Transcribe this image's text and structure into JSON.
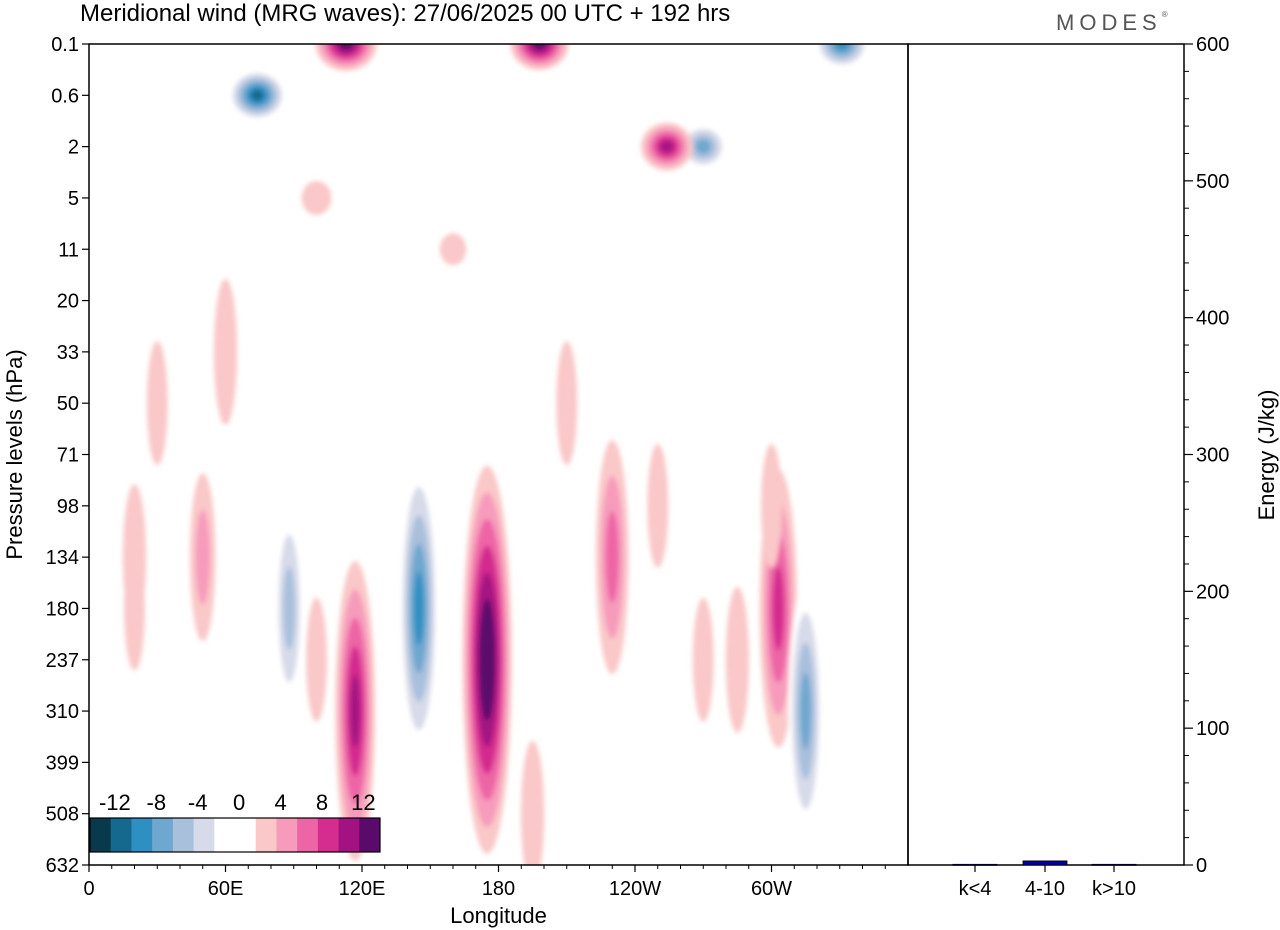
{
  "header": {
    "title": "Meridional wind (MRG waves):  27/06/2025  00 UTC  + 192 hrs",
    "logo": "MODES",
    "logo_mark": "®"
  },
  "chart_data": [
    {
      "type": "heatmap",
      "title": "Meridional wind (MRG waves):  27/06/2025  00 UTC  + 192 hrs",
      "xlabel": "Longitude",
      "ylabel": "Pressure levels (hPa)",
      "x_ticks": [
        "0",
        "60E",
        "120E",
        "180",
        "120W",
        "60W"
      ],
      "y_ticks": [
        "0.1",
        "0.6",
        "2",
        "5",
        "11",
        "20",
        "33",
        "50",
        "71",
        "98",
        "134",
        "180",
        "237",
        "310",
        "399",
        "508",
        "632"
      ],
      "colorbar": {
        "labels": [
          "-12",
          "-8",
          "-4",
          "0",
          "4",
          "8",
          "12"
        ],
        "colors": [
          "#08394d",
          "#15698f",
          "#2d8fc2",
          "#6ea7cf",
          "#a9c0dd",
          "#d7dae9",
          "#ffffff",
          "#ffffff",
          "#fac8c8",
          "#f79bbc",
          "#ee65a6",
          "#d42c8f",
          "#a41282",
          "#5a0a6a"
        ]
      },
      "features": [
        {
          "lon": 175,
          "level": "237",
          "value": 14
        },
        {
          "lon": 145,
          "level": "180",
          "value": -10
        },
        {
          "lon": 117,
          "level": "310",
          "value": 10
        },
        {
          "lon": 303,
          "level": "180",
          "value": 9
        },
        {
          "lon": 315,
          "level": "310",
          "value": -8
        },
        {
          "lon": 88,
          "level": "180",
          "value": -6
        },
        {
          "lon": 230,
          "level": "134",
          "value": 7
        },
        {
          "lon": 74,
          "level": "0.6",
          "value": -12
        },
        {
          "lon": 113,
          "level": "0.1",
          "value": 13
        },
        {
          "lon": 331,
          "level": "0.1",
          "value": -11
        },
        {
          "lon": 198,
          "level": "0.1",
          "value": 12
        },
        {
          "lon": 270,
          "level": "2",
          "value": -9
        },
        {
          "lon": 254,
          "level": "2",
          "value": 10
        }
      ]
    },
    {
      "type": "bar",
      "categories": [
        "k<4",
        "4-10",
        "k>10"
      ],
      "values": [
        0.5,
        3,
        0.5
      ],
      "ylabel": "Energy (J/kg)",
      "ylim": [
        0,
        600
      ],
      "y_ticks": [
        "0",
        "100",
        "200",
        "300",
        "400",
        "500",
        "600"
      ],
      "bar_color": "#0000aa"
    }
  ]
}
